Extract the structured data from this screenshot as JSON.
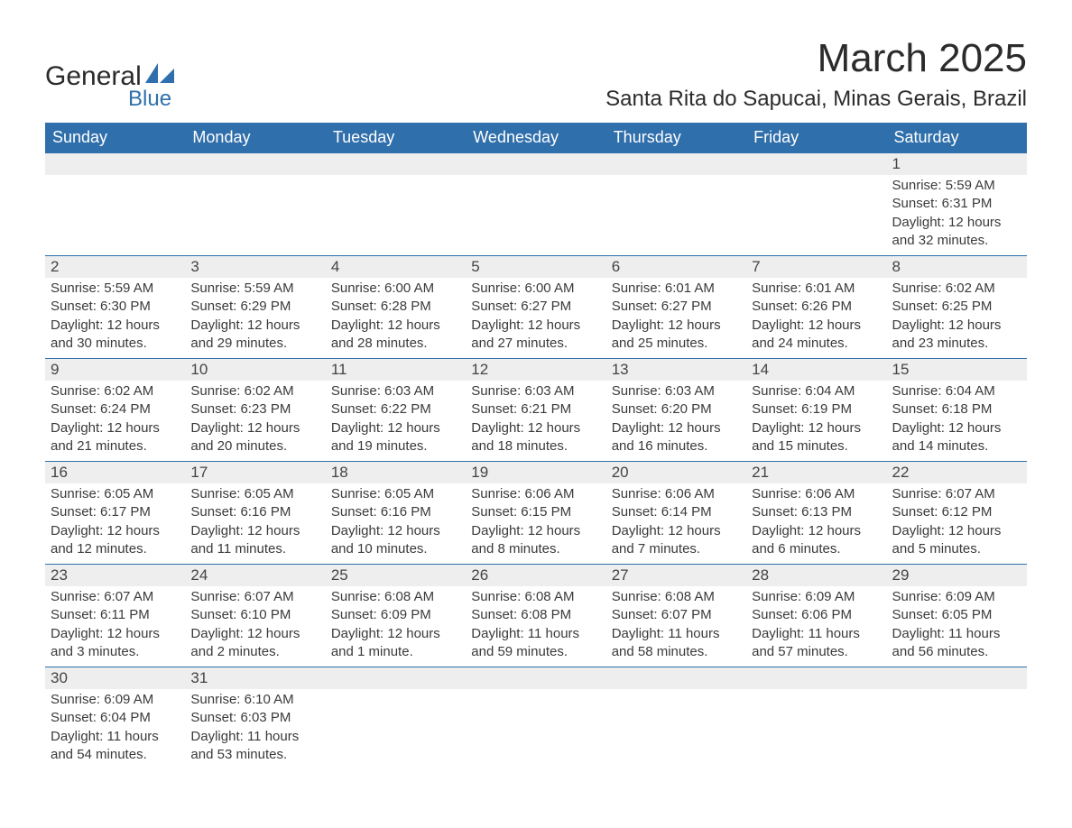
{
  "logo": {
    "text_main": "General",
    "text_sub": "Blue",
    "brand_color": "#2f6fab",
    "text_color": "#2b2b2b"
  },
  "header": {
    "title": "March 2025",
    "subtitle": "Santa Rita do Sapucai, Minas Gerais, Brazil"
  },
  "calendar": {
    "dayNames": [
      "Sunday",
      "Monday",
      "Tuesday",
      "Wednesday",
      "Thursday",
      "Friday",
      "Saturday"
    ],
    "header_bg": "#2f6fab",
    "header_fg": "#ffffff",
    "daynum_bg": "#eeeeee",
    "border_color": "#2f6fab",
    "text_color": "#3a3a3a",
    "font_size_header": 18,
    "font_size_daynum": 17,
    "font_size_body": 15,
    "weeks": [
      {
        "cells": [
          {
            "empty": true
          },
          {
            "empty": true
          },
          {
            "empty": true
          },
          {
            "empty": true
          },
          {
            "empty": true
          },
          {
            "empty": true
          },
          {
            "day": "1",
            "sunrise": "Sunrise: 5:59 AM",
            "sunset": "Sunset: 6:31 PM",
            "daylight1": "Daylight: 12 hours",
            "daylight2": "and 32 minutes."
          }
        ]
      },
      {
        "cells": [
          {
            "day": "2",
            "sunrise": "Sunrise: 5:59 AM",
            "sunset": "Sunset: 6:30 PM",
            "daylight1": "Daylight: 12 hours",
            "daylight2": "and 30 minutes."
          },
          {
            "day": "3",
            "sunrise": "Sunrise: 5:59 AM",
            "sunset": "Sunset: 6:29 PM",
            "daylight1": "Daylight: 12 hours",
            "daylight2": "and 29 minutes."
          },
          {
            "day": "4",
            "sunrise": "Sunrise: 6:00 AM",
            "sunset": "Sunset: 6:28 PM",
            "daylight1": "Daylight: 12 hours",
            "daylight2": "and 28 minutes."
          },
          {
            "day": "5",
            "sunrise": "Sunrise: 6:00 AM",
            "sunset": "Sunset: 6:27 PM",
            "daylight1": "Daylight: 12 hours",
            "daylight2": "and 27 minutes."
          },
          {
            "day": "6",
            "sunrise": "Sunrise: 6:01 AM",
            "sunset": "Sunset: 6:27 PM",
            "daylight1": "Daylight: 12 hours",
            "daylight2": "and 25 minutes."
          },
          {
            "day": "7",
            "sunrise": "Sunrise: 6:01 AM",
            "sunset": "Sunset: 6:26 PM",
            "daylight1": "Daylight: 12 hours",
            "daylight2": "and 24 minutes."
          },
          {
            "day": "8",
            "sunrise": "Sunrise: 6:02 AM",
            "sunset": "Sunset: 6:25 PM",
            "daylight1": "Daylight: 12 hours",
            "daylight2": "and 23 minutes."
          }
        ]
      },
      {
        "cells": [
          {
            "day": "9",
            "sunrise": "Sunrise: 6:02 AM",
            "sunset": "Sunset: 6:24 PM",
            "daylight1": "Daylight: 12 hours",
            "daylight2": "and 21 minutes."
          },
          {
            "day": "10",
            "sunrise": "Sunrise: 6:02 AM",
            "sunset": "Sunset: 6:23 PM",
            "daylight1": "Daylight: 12 hours",
            "daylight2": "and 20 minutes."
          },
          {
            "day": "11",
            "sunrise": "Sunrise: 6:03 AM",
            "sunset": "Sunset: 6:22 PM",
            "daylight1": "Daylight: 12 hours",
            "daylight2": "and 19 minutes."
          },
          {
            "day": "12",
            "sunrise": "Sunrise: 6:03 AM",
            "sunset": "Sunset: 6:21 PM",
            "daylight1": "Daylight: 12 hours",
            "daylight2": "and 18 minutes."
          },
          {
            "day": "13",
            "sunrise": "Sunrise: 6:03 AM",
            "sunset": "Sunset: 6:20 PM",
            "daylight1": "Daylight: 12 hours",
            "daylight2": "and 16 minutes."
          },
          {
            "day": "14",
            "sunrise": "Sunrise: 6:04 AM",
            "sunset": "Sunset: 6:19 PM",
            "daylight1": "Daylight: 12 hours",
            "daylight2": "and 15 minutes."
          },
          {
            "day": "15",
            "sunrise": "Sunrise: 6:04 AM",
            "sunset": "Sunset: 6:18 PM",
            "daylight1": "Daylight: 12 hours",
            "daylight2": "and 14 minutes."
          }
        ]
      },
      {
        "cells": [
          {
            "day": "16",
            "sunrise": "Sunrise: 6:05 AM",
            "sunset": "Sunset: 6:17 PM",
            "daylight1": "Daylight: 12 hours",
            "daylight2": "and 12 minutes."
          },
          {
            "day": "17",
            "sunrise": "Sunrise: 6:05 AM",
            "sunset": "Sunset: 6:16 PM",
            "daylight1": "Daylight: 12 hours",
            "daylight2": "and 11 minutes."
          },
          {
            "day": "18",
            "sunrise": "Sunrise: 6:05 AM",
            "sunset": "Sunset: 6:16 PM",
            "daylight1": "Daylight: 12 hours",
            "daylight2": "and 10 minutes."
          },
          {
            "day": "19",
            "sunrise": "Sunrise: 6:06 AM",
            "sunset": "Sunset: 6:15 PM",
            "daylight1": "Daylight: 12 hours",
            "daylight2": "and 8 minutes."
          },
          {
            "day": "20",
            "sunrise": "Sunrise: 6:06 AM",
            "sunset": "Sunset: 6:14 PM",
            "daylight1": "Daylight: 12 hours",
            "daylight2": "and 7 minutes."
          },
          {
            "day": "21",
            "sunrise": "Sunrise: 6:06 AM",
            "sunset": "Sunset: 6:13 PM",
            "daylight1": "Daylight: 12 hours",
            "daylight2": "and 6 minutes."
          },
          {
            "day": "22",
            "sunrise": "Sunrise: 6:07 AM",
            "sunset": "Sunset: 6:12 PM",
            "daylight1": "Daylight: 12 hours",
            "daylight2": "and 5 minutes."
          }
        ]
      },
      {
        "cells": [
          {
            "day": "23",
            "sunrise": "Sunrise: 6:07 AM",
            "sunset": "Sunset: 6:11 PM",
            "daylight1": "Daylight: 12 hours",
            "daylight2": "and 3 minutes."
          },
          {
            "day": "24",
            "sunrise": "Sunrise: 6:07 AM",
            "sunset": "Sunset: 6:10 PM",
            "daylight1": "Daylight: 12 hours",
            "daylight2": "and 2 minutes."
          },
          {
            "day": "25",
            "sunrise": "Sunrise: 6:08 AM",
            "sunset": "Sunset: 6:09 PM",
            "daylight1": "Daylight: 12 hours",
            "daylight2": "and 1 minute."
          },
          {
            "day": "26",
            "sunrise": "Sunrise: 6:08 AM",
            "sunset": "Sunset: 6:08 PM",
            "daylight1": "Daylight: 11 hours",
            "daylight2": "and 59 minutes."
          },
          {
            "day": "27",
            "sunrise": "Sunrise: 6:08 AM",
            "sunset": "Sunset: 6:07 PM",
            "daylight1": "Daylight: 11 hours",
            "daylight2": "and 58 minutes."
          },
          {
            "day": "28",
            "sunrise": "Sunrise: 6:09 AM",
            "sunset": "Sunset: 6:06 PM",
            "daylight1": "Daylight: 11 hours",
            "daylight2": "and 57 minutes."
          },
          {
            "day": "29",
            "sunrise": "Sunrise: 6:09 AM",
            "sunset": "Sunset: 6:05 PM",
            "daylight1": "Daylight: 11 hours",
            "daylight2": "and 56 minutes."
          }
        ]
      },
      {
        "cells": [
          {
            "day": "30",
            "sunrise": "Sunrise: 6:09 AM",
            "sunset": "Sunset: 6:04 PM",
            "daylight1": "Daylight: 11 hours",
            "daylight2": "and 54 minutes."
          },
          {
            "day": "31",
            "sunrise": "Sunrise: 6:10 AM",
            "sunset": "Sunset: 6:03 PM",
            "daylight1": "Daylight: 11 hours",
            "daylight2": "and 53 minutes."
          },
          {
            "empty": true
          },
          {
            "empty": true
          },
          {
            "empty": true
          },
          {
            "empty": true
          },
          {
            "empty": true
          }
        ]
      }
    ]
  }
}
